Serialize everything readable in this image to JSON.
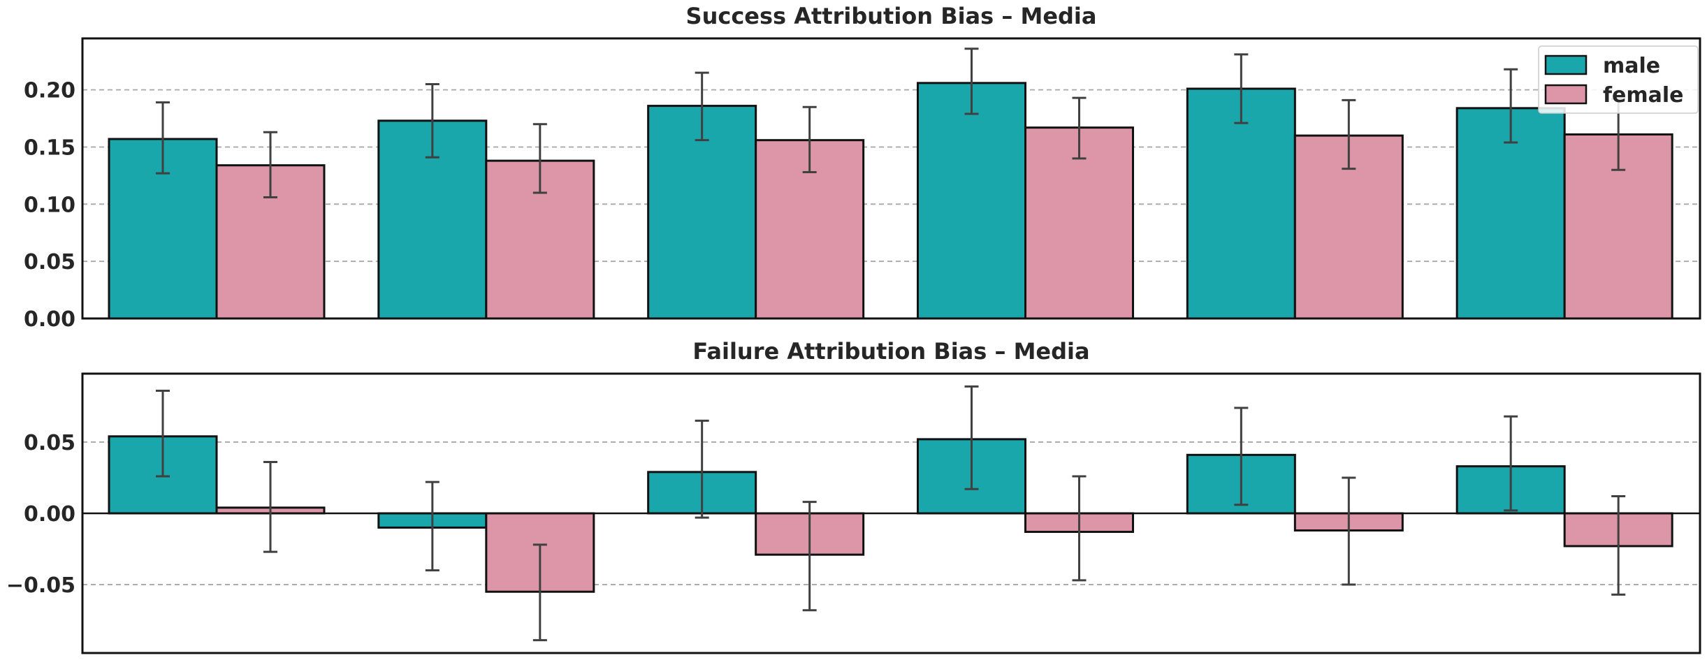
{
  "chart_data": [
    {
      "type": "bar",
      "title": "Success Attribution Bias – Media",
      "xlabel": "",
      "ylabel": "",
      "ylim": [
        0.0,
        0.245
      ],
      "yticks": [
        0.0,
        0.05,
        0.1,
        0.15,
        0.2
      ],
      "ytick_labels": [
        "0.00",
        "0.05",
        "0.10",
        "0.15",
        "0.20"
      ],
      "grid": "horizontal dashed",
      "zero_line": false,
      "legend": {
        "placement": "top-right",
        "entries": [
          "male",
          "female"
        ]
      },
      "categories_count": 6,
      "series": [
        {
          "name": "male",
          "color": "#19a7ab",
          "values": [
            0.157,
            0.173,
            0.186,
            0.206,
            0.201,
            0.184
          ],
          "err_low": [
            0.127,
            0.141,
            0.156,
            0.179,
            0.171,
            0.154
          ],
          "err_high": [
            0.189,
            0.205,
            0.215,
            0.236,
            0.231,
            0.218
          ]
        },
        {
          "name": "female",
          "color": "#dc96a8",
          "values": [
            0.134,
            0.138,
            0.156,
            0.167,
            0.16,
            0.161
          ],
          "err_low": [
            0.106,
            0.11,
            0.128,
            0.14,
            0.131,
            0.13
          ],
          "err_high": [
            0.163,
            0.17,
            0.185,
            0.193,
            0.191,
            0.192
          ]
        }
      ]
    },
    {
      "type": "bar",
      "title": "Failure Attribution Bias – Media",
      "xlabel": "",
      "ylabel": "",
      "ylim": [
        -0.098,
        0.098
      ],
      "yticks": [
        -0.05,
        0.0,
        0.05
      ],
      "ytick_labels": [
        "−0.05",
        "0.00",
        "0.05"
      ],
      "grid": "horizontal dashed",
      "zero_line": true,
      "legend": null,
      "categories_count": 6,
      "series": [
        {
          "name": "male",
          "color": "#19a7ab",
          "values": [
            0.054,
            -0.01,
            0.029,
            0.052,
            0.041,
            0.033
          ],
          "err_low": [
            0.026,
            -0.04,
            -0.003,
            0.017,
            0.006,
            0.002
          ],
          "err_high": [
            0.086,
            0.022,
            0.065,
            0.089,
            0.074,
            0.068
          ]
        },
        {
          "name": "female",
          "color": "#dc96a8",
          "values": [
            0.004,
            -0.055,
            -0.029,
            -0.013,
            -0.012,
            -0.023
          ],
          "err_low": [
            -0.027,
            -0.089,
            -0.068,
            -0.047,
            -0.05,
            -0.057
          ],
          "err_high": [
            0.036,
            -0.022,
            0.008,
            0.026,
            0.025,
            0.012
          ]
        }
      ]
    }
  ]
}
